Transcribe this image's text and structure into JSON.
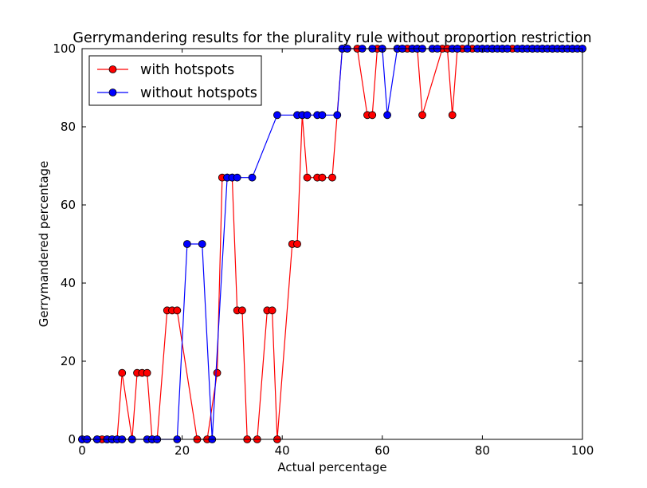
{
  "chart_data": {
    "type": "line",
    "title": "Gerrymandering results for the plurality rule without proportion restriction",
    "xlabel": "Actual percentage",
    "ylabel": "Gerrymandered percentage",
    "xlim": [
      0,
      100
    ],
    "ylim": [
      0,
      100
    ],
    "xticks": [
      0,
      20,
      40,
      60,
      80,
      100
    ],
    "yticks": [
      0,
      20,
      40,
      60,
      80,
      100
    ],
    "grid": false,
    "legend_position": "top-left",
    "series": [
      {
        "name": "with hotspots",
        "color": "#ff0000",
        "x": [
          0,
          1,
          3,
          4,
          5,
          6,
          7,
          8,
          10,
          11,
          12,
          13,
          14,
          15,
          17,
          18,
          19,
          23,
          25,
          27,
          28,
          29,
          30,
          31,
          32,
          33,
          35,
          37,
          38,
          39,
          42,
          43,
          44,
          45,
          47,
          48,
          50,
          52,
          53,
          55,
          57,
          58,
          59,
          60,
          63,
          64,
          65,
          66,
          67,
          68,
          72,
          73,
          74,
          75,
          76,
          78,
          80,
          82,
          84,
          86,
          88,
          90,
          92,
          94,
          96,
          98,
          100
        ],
        "y": [
          0,
          0,
          0,
          0,
          0,
          0,
          0,
          17,
          0,
          17,
          17,
          17,
          0,
          0,
          33,
          33,
          33,
          0,
          0,
          17,
          67,
          67,
          67,
          33,
          33,
          0,
          0,
          33,
          33,
          0,
          50,
          50,
          83,
          67,
          67,
          67,
          67,
          100,
          100,
          100,
          83,
          83,
          100,
          100,
          100,
          100,
          100,
          100,
          100,
          83,
          100,
          100,
          83,
          100,
          100,
          100,
          100,
          100,
          100,
          100,
          100,
          100,
          100,
          100,
          100,
          100,
          100
        ]
      },
      {
        "name": "without hotspots",
        "color": "#0000ff",
        "x": [
          0,
          1,
          3,
          5,
          6,
          7,
          8,
          10,
          13,
          14,
          15,
          19,
          21,
          24,
          26,
          29,
          30,
          31,
          34,
          39,
          43,
          44,
          45,
          47,
          48,
          51,
          52,
          53,
          56,
          58,
          60,
          61,
          63,
          64,
          66,
          67,
          68,
          70,
          71,
          74,
          75,
          77,
          79,
          80,
          81,
          82,
          83,
          84,
          85,
          87,
          88,
          89,
          90,
          91,
          92,
          93,
          94,
          95,
          96,
          97,
          98,
          99,
          100
        ],
        "y": [
          0,
          0,
          0,
          0,
          0,
          0,
          0,
          0,
          0,
          0,
          0,
          0,
          50,
          50,
          0,
          67,
          67,
          67,
          67,
          83,
          83,
          83,
          83,
          83,
          83,
          83,
          100,
          100,
          100,
          100,
          100,
          83,
          100,
          100,
          100,
          100,
          100,
          100,
          100,
          100,
          100,
          100,
          100,
          100,
          100,
          100,
          100,
          100,
          100,
          100,
          100,
          100,
          100,
          100,
          100,
          100,
          100,
          100,
          100,
          100,
          100,
          100,
          100
        ]
      }
    ]
  }
}
